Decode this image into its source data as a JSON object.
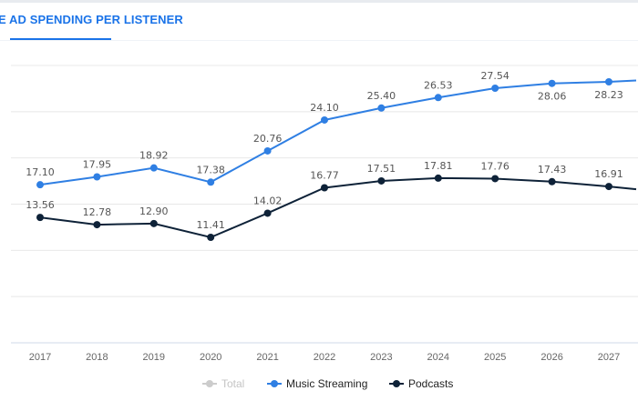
{
  "tab": {
    "label": "E AD SPENDING PER LISTENER"
  },
  "colors": {
    "accent": "#1a73e8",
    "music": "#2f7fe3",
    "podcasts": "#0e2238",
    "total": "#cccccc",
    "label": "#555555",
    "grid": "#e8e8e8",
    "axis": "#cfd8ea"
  },
  "legend": [
    {
      "name": "Total",
      "color": "#cccccc",
      "muted": true
    },
    {
      "name": "Music Streaming",
      "color": "#2f7fe3",
      "muted": false
    },
    {
      "name": "Podcasts",
      "color": "#0e2238",
      "muted": false
    }
  ],
  "chart_data": {
    "type": "line",
    "title": "AD SPENDING PER LISTENER",
    "xlabel": "",
    "ylabel": "",
    "categories": [
      "2017",
      "2018",
      "2019",
      "2020",
      "2021",
      "2022",
      "2023",
      "2024",
      "2025",
      "2026",
      "2027"
    ],
    "ylim": [
      0,
      30
    ],
    "grid": true,
    "legend_position": "bottom",
    "series": [
      {
        "name": "Music Streaming",
        "values": [
          17.1,
          17.95,
          18.92,
          17.38,
          20.76,
          24.1,
          25.4,
          26.53,
          27.54,
          28.06,
          28.23
        ],
        "labels": [
          "17.10",
          "17.95",
          "18.92",
          "17.38",
          "20.76",
          "24.10",
          "25.40",
          "26.53",
          "27.54",
          "28.06",
          "28.23"
        ]
      },
      {
        "name": "Podcasts",
        "values": [
          13.56,
          12.78,
          12.9,
          11.41,
          14.02,
          16.77,
          17.51,
          17.81,
          17.76,
          17.43,
          16.91
        ],
        "labels": [
          "13.56",
          "12.78",
          "12.90",
          "11.41",
          "14.02",
          "16.77",
          "17.51",
          "17.81",
          "17.76",
          "17.43",
          "16.91"
        ]
      }
    ]
  }
}
